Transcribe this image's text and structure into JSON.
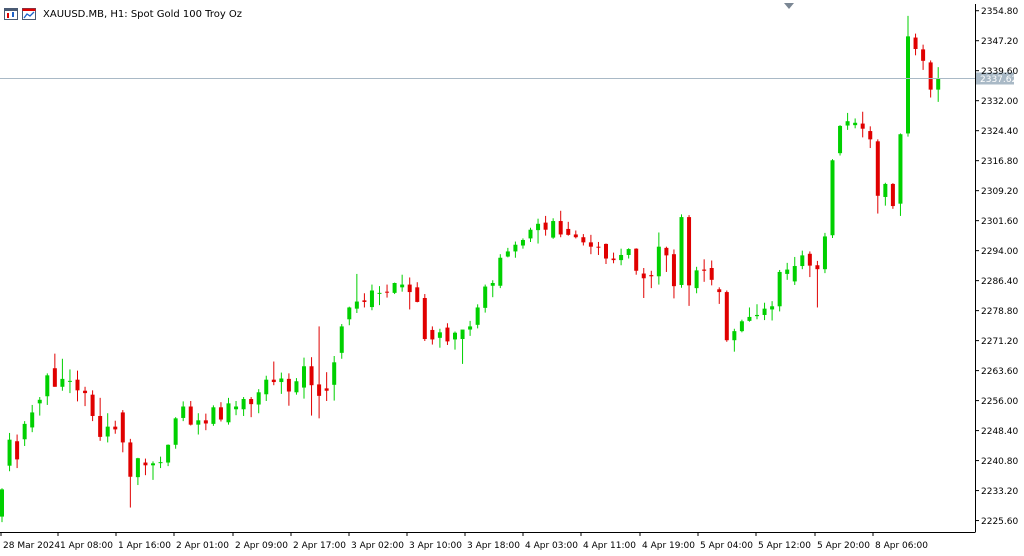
{
  "header": {
    "title": "XAUUSD.MB, H1:  Spot Gold 100 Troy Oz"
  },
  "current_price_label": "2337.62",
  "colors": {
    "bull": "#00d000",
    "bear": "#e00000",
    "axis": "#000000",
    "price_line": "#a9b9c6",
    "price_tag_bg": "#a9b9c6"
  },
  "chart_data": {
    "type": "candlestick",
    "y_tick_labels": [
      "2354.80",
      "2347.20",
      "2339.60",
      "2332.00",
      "2324.40",
      "2316.80",
      "2309.20",
      "2301.60",
      "2294.00",
      "2286.40",
      "2278.80",
      "2271.20",
      "2263.60",
      "2256.00",
      "2248.40",
      "2240.80",
      "2233.20",
      "2225.60"
    ],
    "ylim": [
      2222.7,
      2356.5
    ],
    "x_tick_labels": [
      "28 Mar 2024",
      "1 Apr 08:00",
      "1 Apr 16:00",
      "2 Apr 01:00",
      "2 Apr 09:00",
      "2 Apr 17:00",
      "3 Apr 02:00",
      "3 Apr 10:00",
      "3 Apr 18:00",
      "4 Apr 03:00",
      "4 Apr 11:00",
      "4 Apr 19:00",
      "5 Apr 04:00",
      "5 Apr 12:00",
      "5 Apr 20:00",
      "8 Apr 06:00"
    ],
    "last_price": 2337.62,
    "candles": [
      {
        "o": 2226.6,
        "h": 2233.8,
        "l": 2225.2,
        "c": 2233.5
      },
      {
        "o": 2239.5,
        "h": 2247.8,
        "l": 2238.1,
        "c": 2246.1
      },
      {
        "o": 2245.7,
        "h": 2247.4,
        "l": 2238.9,
        "c": 2241.1
      },
      {
        "o": 2246.2,
        "h": 2250.8,
        "l": 2244.5,
        "c": 2250.1
      },
      {
        "o": 2249.2,
        "h": 2254.9,
        "l": 2248.0,
        "c": 2253.0
      },
      {
        "o": 2255.3,
        "h": 2256.9,
        "l": 2252.2,
        "c": 2256.2
      },
      {
        "o": 2257.1,
        "h": 2262.9,
        "l": 2254.9,
        "c": 2262.4
      },
      {
        "o": 2264.2,
        "h": 2267.9,
        "l": 2259.5,
        "c": 2259.5
      },
      {
        "o": 2259.5,
        "h": 2266.6,
        "l": 2258.5,
        "c": 2261.5
      },
      {
        "o": 2261.0,
        "h": 2263.9,
        "l": 2257.9,
        "c": 2261.0
      },
      {
        "o": 2261.3,
        "h": 2263.6,
        "l": 2255.8,
        "c": 2258.6
      },
      {
        "o": 2258.5,
        "h": 2259.5,
        "l": 2254.6,
        "c": 2257.9
      },
      {
        "o": 2257.5,
        "h": 2258.6,
        "l": 2250.8,
        "c": 2252.1
      },
      {
        "o": 2252.1,
        "h": 2256.7,
        "l": 2245.8,
        "c": 2246.8
      },
      {
        "o": 2246.9,
        "h": 2252.8,
        "l": 2245.4,
        "c": 2249.4
      },
      {
        "o": 2249.4,
        "h": 2250.9,
        "l": 2247.6,
        "c": 2248.7
      },
      {
        "o": 2253.0,
        "h": 2253.6,
        "l": 2242.9,
        "c": 2245.4
      },
      {
        "o": 2245.4,
        "h": 2246.3,
        "l": 2228.9,
        "c": 2236.7
      },
      {
        "o": 2236.6,
        "h": 2241.5,
        "l": 2234.6,
        "c": 2241.4
      },
      {
        "o": 2240.3,
        "h": 2241.3,
        "l": 2237.1,
        "c": 2239.6
      },
      {
        "o": 2239.6,
        "h": 2240.6,
        "l": 2235.9,
        "c": 2240.1
      },
      {
        "o": 2240.3,
        "h": 2241.8,
        "l": 2238.9,
        "c": 2240.4
      },
      {
        "o": 2240.3,
        "h": 2244.9,
        "l": 2239.4,
        "c": 2244.8
      },
      {
        "o": 2244.8,
        "h": 2251.8,
        "l": 2243.8,
        "c": 2251.5
      },
      {
        "o": 2251.6,
        "h": 2255.8,
        "l": 2250.8,
        "c": 2254.5
      },
      {
        "o": 2254.5,
        "h": 2255.9,
        "l": 2249.7,
        "c": 2249.9
      },
      {
        "o": 2249.9,
        "h": 2252.8,
        "l": 2247.4,
        "c": 2251.0
      },
      {
        "o": 2251.0,
        "h": 2252.7,
        "l": 2248.5,
        "c": 2250.2
      },
      {
        "o": 2250.1,
        "h": 2254.8,
        "l": 2249.6,
        "c": 2254.3
      },
      {
        "o": 2254.3,
        "h": 2255.6,
        "l": 2250.7,
        "c": 2251.2
      },
      {
        "o": 2250.5,
        "h": 2256.7,
        "l": 2249.9,
        "c": 2255.3
      },
      {
        "o": 2253.8,
        "h": 2255.9,
        "l": 2252.3,
        "c": 2254.5
      },
      {
        "o": 2253.8,
        "h": 2256.9,
        "l": 2252.1,
        "c": 2256.4
      },
      {
        "o": 2256.4,
        "h": 2256.9,
        "l": 2251.8,
        "c": 2255.1
      },
      {
        "o": 2255.0,
        "h": 2258.9,
        "l": 2252.8,
        "c": 2258.1
      },
      {
        "o": 2257.6,
        "h": 2262.3,
        "l": 2255.9,
        "c": 2261.3
      },
      {
        "o": 2261.3,
        "h": 2265.9,
        "l": 2259.9,
        "c": 2260.7
      },
      {
        "o": 2260.7,
        "h": 2263.1,
        "l": 2257.7,
        "c": 2261.6
      },
      {
        "o": 2261.5,
        "h": 2262.9,
        "l": 2254.7,
        "c": 2258.3
      },
      {
        "o": 2258.1,
        "h": 2261.7,
        "l": 2257.5,
        "c": 2260.9
      },
      {
        "o": 2259.3,
        "h": 2266.9,
        "l": 2256.5,
        "c": 2264.7
      },
      {
        "o": 2264.7,
        "h": 2267.0,
        "l": 2252.2,
        "c": 2259.9
      },
      {
        "o": 2260.1,
        "h": 2274.8,
        "l": 2251.5,
        "c": 2257.2
      },
      {
        "o": 2259.1,
        "h": 2263.2,
        "l": 2255.9,
        "c": 2258.5
      },
      {
        "o": 2260.0,
        "h": 2267.3,
        "l": 2256.0,
        "c": 2265.7
      },
      {
        "o": 2268.1,
        "h": 2275.4,
        "l": 2266.6,
        "c": 2274.8
      },
      {
        "o": 2276.6,
        "h": 2279.8,
        "l": 2275.1,
        "c": 2279.6
      },
      {
        "o": 2279.3,
        "h": 2288.1,
        "l": 2278.2,
        "c": 2281.1
      },
      {
        "o": 2281.4,
        "h": 2283.2,
        "l": 2279.6,
        "c": 2281.0
      },
      {
        "o": 2279.7,
        "h": 2285.4,
        "l": 2278.9,
        "c": 2283.9
      },
      {
        "o": 2283.2,
        "h": 2285.0,
        "l": 2280.2,
        "c": 2283.3
      },
      {
        "o": 2283.6,
        "h": 2285.4,
        "l": 2282.1,
        "c": 2283.4
      },
      {
        "o": 2283.3,
        "h": 2285.9,
        "l": 2283.0,
        "c": 2285.8
      },
      {
        "o": 2284.7,
        "h": 2287.9,
        "l": 2283.6,
        "c": 2285.4
      },
      {
        "o": 2285.4,
        "h": 2287.2,
        "l": 2279.1,
        "c": 2283.5
      },
      {
        "o": 2284.7,
        "h": 2286.0,
        "l": 2280.9,
        "c": 2281.0
      },
      {
        "o": 2282.0,
        "h": 2283.0,
        "l": 2271.1,
        "c": 2271.6
      },
      {
        "o": 2273.9,
        "h": 2274.8,
        "l": 2270.2,
        "c": 2271.5
      },
      {
        "o": 2271.9,
        "h": 2274.2,
        "l": 2269.4,
        "c": 2273.3
      },
      {
        "o": 2274.5,
        "h": 2275.6,
        "l": 2270.1,
        "c": 2271.0
      },
      {
        "o": 2271.5,
        "h": 2273.5,
        "l": 2268.9,
        "c": 2273.2
      },
      {
        "o": 2271.6,
        "h": 2273.9,
        "l": 2265.3,
        "c": 2274.0
      },
      {
        "o": 2274.0,
        "h": 2276.2,
        "l": 2272.4,
        "c": 2274.8
      },
      {
        "o": 2275.2,
        "h": 2280.4,
        "l": 2274.3,
        "c": 2279.6
      },
      {
        "o": 2279.5,
        "h": 2285.4,
        "l": 2278.3,
        "c": 2284.9
      },
      {
        "o": 2285.1,
        "h": 2286.5,
        "l": 2282.2,
        "c": 2285.8
      },
      {
        "o": 2285.1,
        "h": 2293.1,
        "l": 2284.5,
        "c": 2292.2
      },
      {
        "o": 2292.5,
        "h": 2294.7,
        "l": 2292.3,
        "c": 2293.8
      },
      {
        "o": 2293.8,
        "h": 2296.3,
        "l": 2292.2,
        "c": 2295.5
      },
      {
        "o": 2295.3,
        "h": 2297.1,
        "l": 2294.5,
        "c": 2296.7
      },
      {
        "o": 2297.1,
        "h": 2299.8,
        "l": 2296.2,
        "c": 2299.3
      },
      {
        "o": 2299.2,
        "h": 2302.1,
        "l": 2295.8,
        "c": 2300.8
      },
      {
        "o": 2301.1,
        "h": 2302.8,
        "l": 2297.8,
        "c": 2299.3
      },
      {
        "o": 2297.3,
        "h": 2302.2,
        "l": 2297.0,
        "c": 2301.5
      },
      {
        "o": 2301.5,
        "h": 2304.1,
        "l": 2297.4,
        "c": 2298.1
      },
      {
        "o": 2299.5,
        "h": 2301.3,
        "l": 2297.8,
        "c": 2298.0
      },
      {
        "o": 2298.1,
        "h": 2299.1,
        "l": 2297.1,
        "c": 2297.4
      },
      {
        "o": 2297.4,
        "h": 2298.2,
        "l": 2295.3,
        "c": 2296.1
      },
      {
        "o": 2296.1,
        "h": 2298.0,
        "l": 2293.1,
        "c": 2295.0
      },
      {
        "o": 2295.0,
        "h": 2296.2,
        "l": 2292.9,
        "c": 2294.8
      },
      {
        "o": 2295.7,
        "h": 2295.8,
        "l": 2290.6,
        "c": 2292.0
      },
      {
        "o": 2292.0,
        "h": 2293.5,
        "l": 2290.8,
        "c": 2291.6
      },
      {
        "o": 2291.6,
        "h": 2294.5,
        "l": 2290.3,
        "c": 2292.9
      },
      {
        "o": 2292.9,
        "h": 2294.6,
        "l": 2292.0,
        "c": 2294.4
      },
      {
        "o": 2294.5,
        "h": 2294.6,
        "l": 2287.9,
        "c": 2288.9
      },
      {
        "o": 2288.2,
        "h": 2289.6,
        "l": 2282.0,
        "c": 2287.0
      },
      {
        "o": 2287.8,
        "h": 2288.9,
        "l": 2284.5,
        "c": 2287.5
      },
      {
        "o": 2287.5,
        "h": 2298.6,
        "l": 2285.4,
        "c": 2295.0
      },
      {
        "o": 2294.7,
        "h": 2295.0,
        "l": 2288.6,
        "c": 2292.8
      },
      {
        "o": 2293.1,
        "h": 2294.3,
        "l": 2281.9,
        "c": 2285.0
      },
      {
        "o": 2285.3,
        "h": 2303.2,
        "l": 2284.6,
        "c": 2302.5
      },
      {
        "o": 2302.5,
        "h": 2303.0,
        "l": 2280.0,
        "c": 2285.2
      },
      {
        "o": 2284.5,
        "h": 2289.9,
        "l": 2283.2,
        "c": 2289.0
      },
      {
        "o": 2289.2,
        "h": 2291.8,
        "l": 2286.1,
        "c": 2288.9
      },
      {
        "o": 2289.6,
        "h": 2291.5,
        "l": 2285.2,
        "c": 2286.6
      },
      {
        "o": 2284.2,
        "h": 2284.7,
        "l": 2280.5,
        "c": 2283.5
      },
      {
        "o": 2283.5,
        "h": 2283.9,
        "l": 2270.9,
        "c": 2271.3
      },
      {
        "o": 2271.3,
        "h": 2274.2,
        "l": 2268.4,
        "c": 2273.6
      },
      {
        "o": 2273.6,
        "h": 2276.5,
        "l": 2273.3,
        "c": 2276.1
      },
      {
        "o": 2276.2,
        "h": 2279.6,
        "l": 2276.0,
        "c": 2277.2
      },
      {
        "o": 2277.4,
        "h": 2280.4,
        "l": 2276.6,
        "c": 2277.7
      },
      {
        "o": 2277.7,
        "h": 2280.8,
        "l": 2276.4,
        "c": 2279.3
      },
      {
        "o": 2279.1,
        "h": 2281.2,
        "l": 2276.3,
        "c": 2279.9
      },
      {
        "o": 2279.9,
        "h": 2289.1,
        "l": 2278.6,
        "c": 2288.6
      },
      {
        "o": 2288.1,
        "h": 2290.9,
        "l": 2286.6,
        "c": 2289.2
      },
      {
        "o": 2286.2,
        "h": 2292.4,
        "l": 2285.3,
        "c": 2290.1
      },
      {
        "o": 2290.1,
        "h": 2294.0,
        "l": 2289.3,
        "c": 2292.8
      },
      {
        "o": 2293.2,
        "h": 2293.8,
        "l": 2287.3,
        "c": 2290.2
      },
      {
        "o": 2290.3,
        "h": 2291.4,
        "l": 2279.6,
        "c": 2289.3
      },
      {
        "o": 2289.3,
        "h": 2298.5,
        "l": 2288.3,
        "c": 2297.6
      },
      {
        "o": 2297.9,
        "h": 2317.2,
        "l": 2297.2,
        "c": 2316.9
      },
      {
        "o": 2318.7,
        "h": 2325.8,
        "l": 2318.1,
        "c": 2325.6
      },
      {
        "o": 2325.7,
        "h": 2328.9,
        "l": 2324.6,
        "c": 2326.8
      },
      {
        "o": 2325.8,
        "h": 2327.5,
        "l": 2325.0,
        "c": 2326.4
      },
      {
        "o": 2326.2,
        "h": 2329.2,
        "l": 2322.7,
        "c": 2324.9
      },
      {
        "o": 2324.3,
        "h": 2325.5,
        "l": 2320.0,
        "c": 2322.2
      },
      {
        "o": 2321.7,
        "h": 2322.2,
        "l": 2303.4,
        "c": 2307.9
      },
      {
        "o": 2307.6,
        "h": 2311.2,
        "l": 2305.4,
        "c": 2310.9
      },
      {
        "o": 2310.9,
        "h": 2311.1,
        "l": 2304.6,
        "c": 2305.3
      },
      {
        "o": 2305.9,
        "h": 2323.7,
        "l": 2302.8,
        "c": 2323.5
      },
      {
        "o": 2323.7,
        "h": 2353.5,
        "l": 2322.9,
        "c": 2348.3
      },
      {
        "o": 2348.0,
        "h": 2349.0,
        "l": 2343.5,
        "c": 2345.1
      },
      {
        "o": 2345.0,
        "h": 2346.2,
        "l": 2339.8,
        "c": 2342.1
      },
      {
        "o": 2341.7,
        "h": 2342.2,
        "l": 2332.8,
        "c": 2334.8
      },
      {
        "o": 2334.8,
        "h": 2340.5,
        "l": 2331.7,
        "c": 2337.6
      }
    ]
  }
}
